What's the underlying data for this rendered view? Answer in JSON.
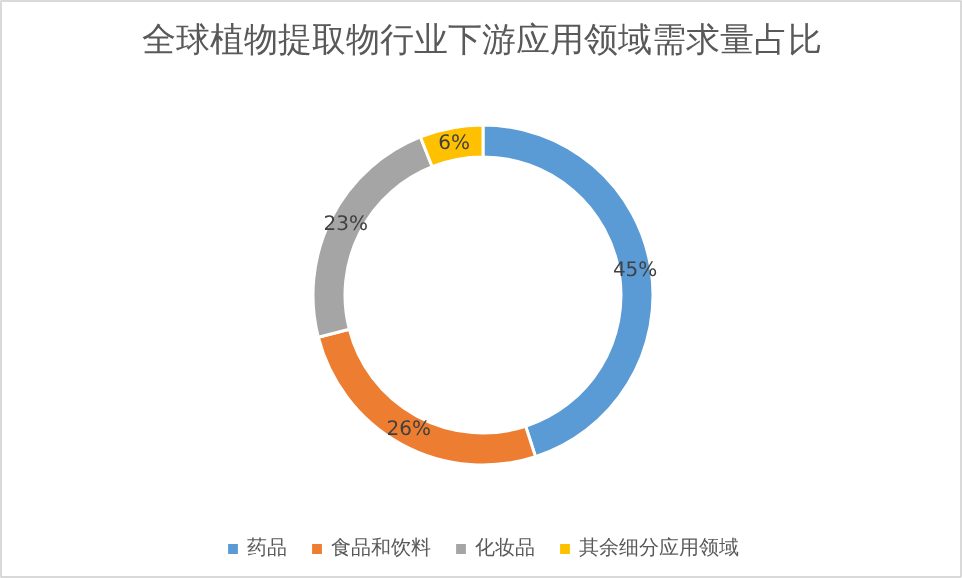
{
  "chart_data": {
    "type": "donut",
    "title": "全球植物提取物行业下游应用领域需求量占比",
    "categories": [
      "药品",
      "食品和饮料",
      "化妆品",
      "其余细分应用领域"
    ],
    "values": [
      45,
      26,
      23,
      6
    ],
    "value_labels": [
      "45%",
      "26%",
      "23%",
      "6%"
    ],
    "colors": [
      "#5b9bd5",
      "#ed7d31",
      "#a5a5a5",
      "#ffc000"
    ],
    "legend": "bottom"
  }
}
